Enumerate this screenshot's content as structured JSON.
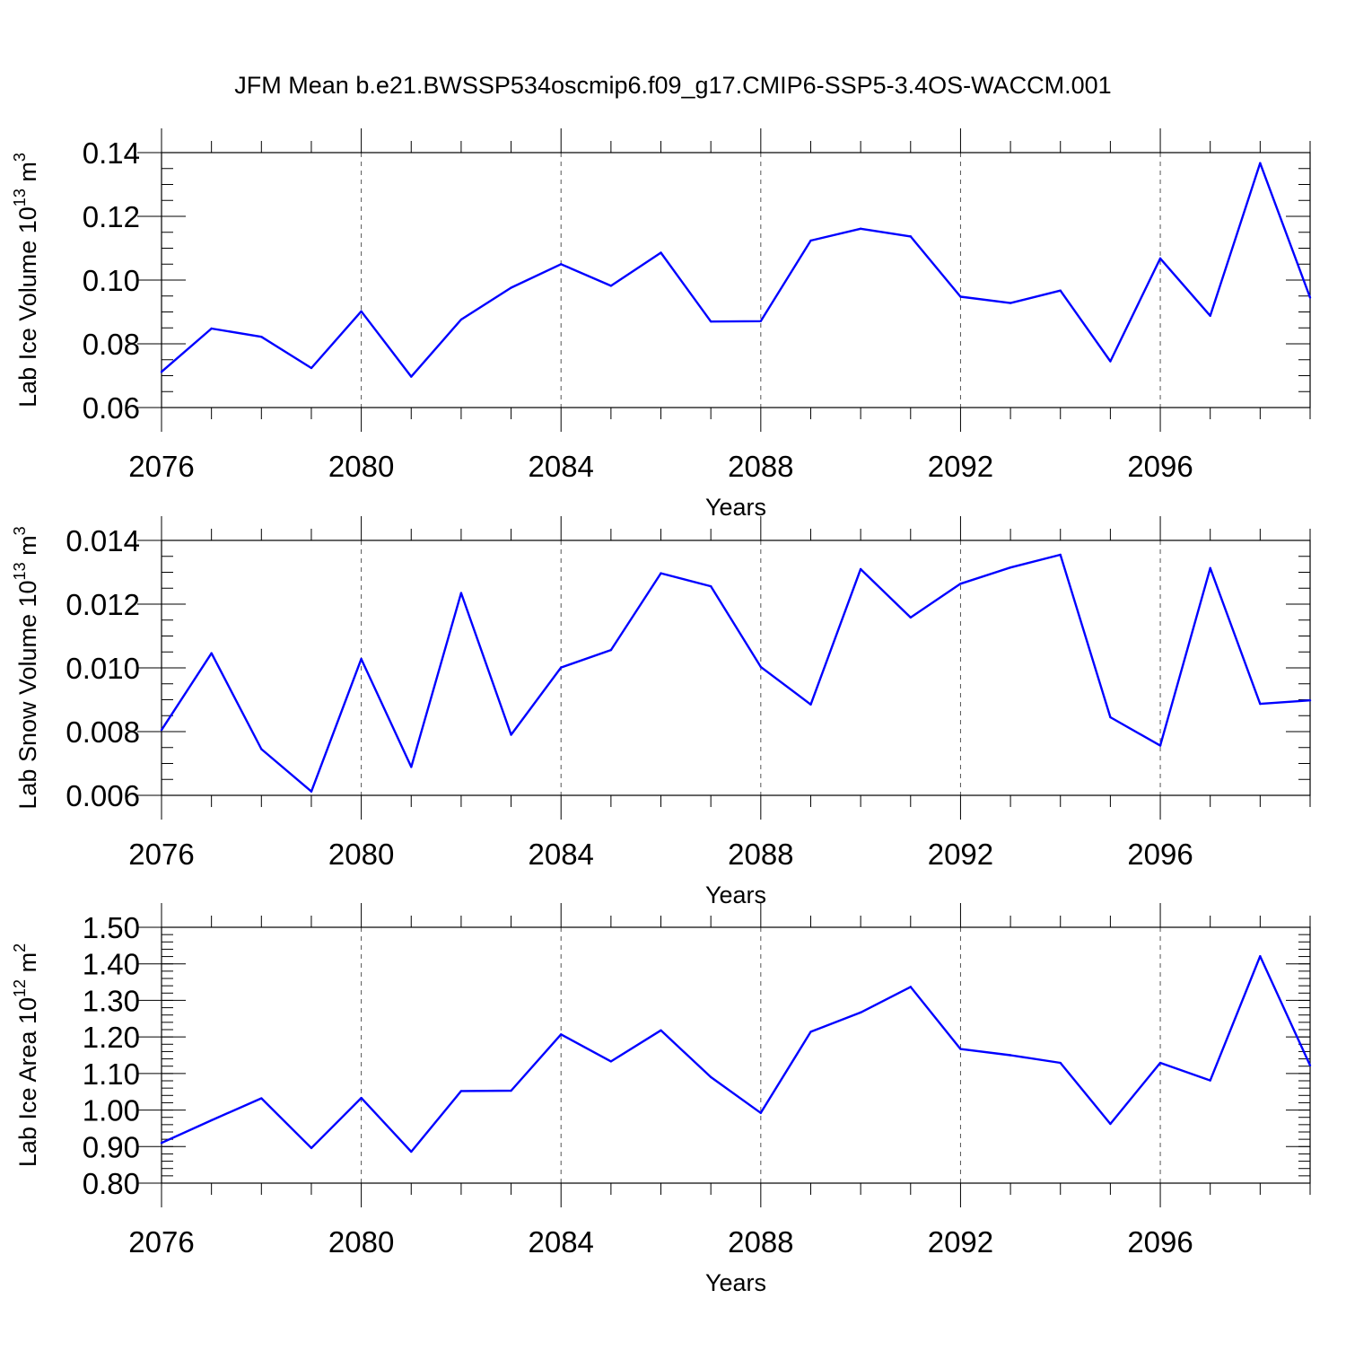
{
  "title": "JFM Mean b.e21.BWSSP534oscmip6.f09_g17.CMIP6-SSP5-3.4OS-WACCM.001",
  "line_color": "#0000ff",
  "chart_data": [
    {
      "type": "line",
      "ylabel_main": "Lab Ice Volume 10",
      "ylabel_exp": "13",
      "ylabel_unit": "m",
      "ylabel_unit_exp": "3",
      "xlabel": "Years",
      "xlim": [
        2076,
        2099
      ],
      "ylim": [
        0.06,
        0.14
      ],
      "ytick_step": 0.02,
      "ytick_decimals": 2,
      "yminor_step": 0.005,
      "xtick_values": [
        2076,
        2080,
        2084,
        2088,
        2092,
        2096
      ],
      "xtick_labels": [
        "2076",
        "2080",
        "2084",
        "2088",
        "2092",
        "2096"
      ],
      "grid": "vertical-dashed",
      "x": [
        2076,
        2077,
        2078,
        2079,
        2080,
        2081,
        2082,
        2083,
        2084,
        2085,
        2086,
        2087,
        2088,
        2089,
        2090,
        2091,
        2092,
        2093,
        2094,
        2095,
        2096,
        2097,
        2098,
        2099
      ],
      "values": [
        0.0712,
        0.0848,
        0.0822,
        0.0724,
        0.0902,
        0.0697,
        0.0876,
        0.0976,
        0.105,
        0.0982,
        0.1086,
        0.087,
        0.0871,
        0.1124,
        0.1161,
        0.1137,
        0.0948,
        0.0928,
        0.0967,
        0.0745,
        0.1068,
        0.0888,
        0.1367,
        0.0945
      ]
    },
    {
      "type": "line",
      "ylabel_main": "Lab Snow Volume 10",
      "ylabel_exp": "13",
      "ylabel_unit": "m",
      "ylabel_unit_exp": "3",
      "xlabel": "Years",
      "xlim": [
        2076,
        2099
      ],
      "ylim": [
        0.006,
        0.014
      ],
      "ytick_step": 0.002,
      "ytick_decimals": 3,
      "yminor_step": 0.0005,
      "xtick_values": [
        2076,
        2080,
        2084,
        2088,
        2092,
        2096
      ],
      "xtick_labels": [
        "2076",
        "2080",
        "2084",
        "2088",
        "2092",
        "2096"
      ],
      "grid": "vertical-dashed",
      "x": [
        2076,
        2077,
        2078,
        2079,
        2080,
        2081,
        2082,
        2083,
        2084,
        2085,
        2086,
        2087,
        2088,
        2089,
        2090,
        2091,
        2092,
        2093,
        2094,
        2095,
        2096,
        2097,
        2098,
        2099
      ],
      "values": [
        0.00805,
        0.01046,
        0.00745,
        0.00612,
        0.01028,
        0.00689,
        0.01235,
        0.0079,
        0.01001,
        0.01056,
        0.01297,
        0.01256,
        0.01003,
        0.00885,
        0.0131,
        0.01158,
        0.01264,
        0.01315,
        0.01355,
        0.00845,
        0.00756,
        0.01313,
        0.00887,
        0.00898
      ]
    },
    {
      "type": "line",
      "ylabel_main": "Lab Ice Area 10",
      "ylabel_exp": "12",
      "ylabel_unit": "m",
      "ylabel_unit_exp": "2",
      "xlabel": "Years",
      "xlim": [
        2076,
        2099
      ],
      "ylim": [
        0.8,
        1.5
      ],
      "ytick_step": 0.1,
      "ytick_decimals": 2,
      "yminor_step": 0.02,
      "xtick_values": [
        2076,
        2080,
        2084,
        2088,
        2092,
        2096
      ],
      "xtick_labels": [
        "2076",
        "2080",
        "2084",
        "2088",
        "2092",
        "2096"
      ],
      "grid": "vertical-dashed",
      "x": [
        2076,
        2077,
        2078,
        2079,
        2080,
        2081,
        2082,
        2083,
        2084,
        2085,
        2086,
        2087,
        2088,
        2089,
        2090,
        2091,
        2092,
        2093,
        2094,
        2095,
        2096,
        2097,
        2098,
        2099
      ],
      "values": [
        0.91,
        0.972,
        1.032,
        0.896,
        1.033,
        0.886,
        1.052,
        1.053,
        1.207,
        1.133,
        1.218,
        1.09,
        0.992,
        1.214,
        1.267,
        1.337,
        1.167,
        1.15,
        1.129,
        0.962,
        1.129,
        1.081,
        1.421,
        1.122
      ]
    }
  ]
}
